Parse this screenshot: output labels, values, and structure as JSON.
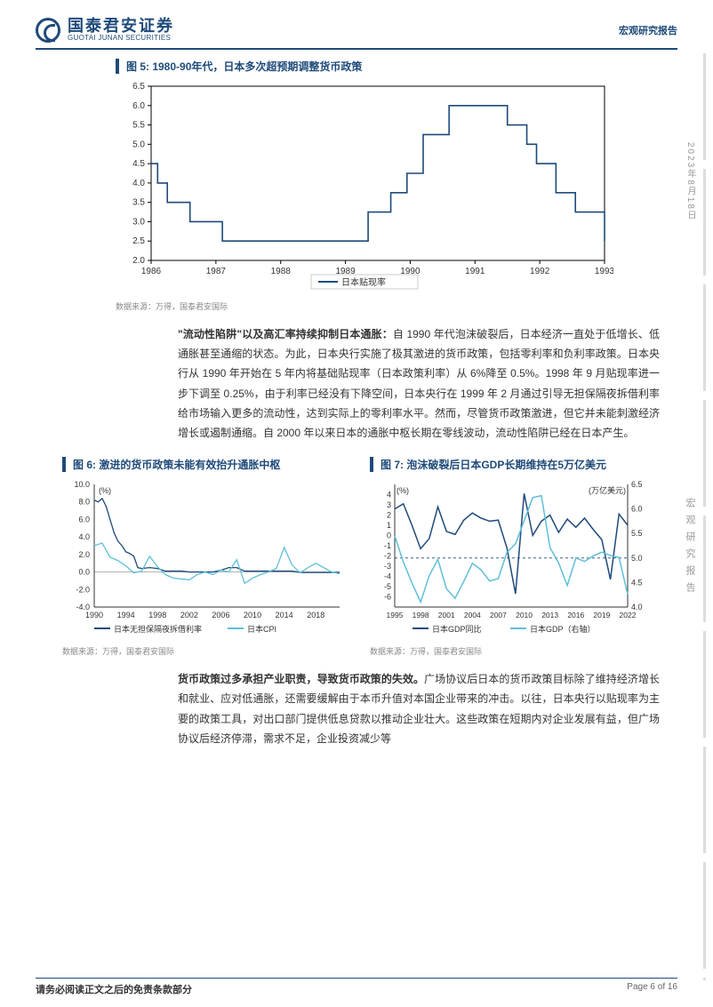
{
  "header": {
    "logo_cn": "国泰君安证券",
    "logo_en": "GUOTAI JUNAN SECURITIES",
    "right": "宏观研究报告"
  },
  "side": {
    "date": "2023年8月18日",
    "label": "宏观研究报告"
  },
  "fig5": {
    "title": "图 5:  1980-90年代，日本多次超预期调整货币政策",
    "type": "step-line",
    "legend": "日本贴现率",
    "xlim": [
      1986,
      1993
    ],
    "ylim": [
      2.0,
      6.5
    ],
    "ytick_step": 0.5,
    "xticks": [
      1986,
      1987,
      1988,
      1989,
      1990,
      1991,
      1992,
      1993
    ],
    "line_color": "#1e4a7a",
    "border_color": "#000000",
    "background_color": "#ffffff",
    "line_width": 1.6,
    "data": [
      [
        1986.0,
        4.5
      ],
      [
        1986.1,
        4.5
      ],
      [
        1986.1,
        4.0
      ],
      [
        1986.25,
        4.0
      ],
      [
        1986.25,
        3.5
      ],
      [
        1986.6,
        3.5
      ],
      [
        1986.6,
        3.0
      ],
      [
        1987.1,
        3.0
      ],
      [
        1987.1,
        2.5
      ],
      [
        1989.35,
        2.5
      ],
      [
        1989.35,
        3.25
      ],
      [
        1989.7,
        3.25
      ],
      [
        1989.7,
        3.75
      ],
      [
        1989.95,
        3.75
      ],
      [
        1989.95,
        4.25
      ],
      [
        1990.2,
        4.25
      ],
      [
        1990.2,
        5.25
      ],
      [
        1990.6,
        5.25
      ],
      [
        1990.6,
        6.0
      ],
      [
        1991.5,
        6.0
      ],
      [
        1991.5,
        5.5
      ],
      [
        1991.8,
        5.5
      ],
      [
        1991.8,
        5.0
      ],
      [
        1991.95,
        5.0
      ],
      [
        1991.95,
        4.5
      ],
      [
        1992.25,
        4.5
      ],
      [
        1992.25,
        3.75
      ],
      [
        1992.55,
        3.75
      ],
      [
        1992.55,
        3.25
      ],
      [
        1993.0,
        3.25
      ],
      [
        1993.0,
        2.5
      ]
    ],
    "source": "数据来源：万得，国泰君安国际"
  },
  "para1": {
    "bold": "\"流动性陷阱\"以及高汇率持续抑制日本通胀：",
    "text": "自 1990 年代泡沫破裂后，日本经济一直处于低增长、低通胀甚至通缩的状态。为此，日本央行实施了极其激进的货币政策，包括零利率和负利率政策。日本央行从 1990 年开始在 5 年内将基础贴现率（日本政策利率）从 6%降至 0.5%。1998 年 9 月贴现率进一步下调至 0.25%，由于利率已经没有下降空间，日本央行在 1999 年 2 月通过引导无担保隔夜拆借利率给市场输入更多的流动性，达到实际上的零利率水平。然而，尽管货币政策激进，但它并未能刺激经济增长或遏制通缩。自 2000 年以来日本的通胀中枢长期在零线波动，流动性陷阱已经在日本产生。"
  },
  "fig6": {
    "title": "图 6:  激进的货币政策未能有效抬升通胀中枢",
    "type": "line",
    "legend1": "日本无担保隔夜拆借利率",
    "legend2": "日本CPI",
    "xlim": [
      1990,
      2021
    ],
    "ylim": [
      -4.0,
      10.0
    ],
    "ytick_step": 2.0,
    "xticks": [
      1990,
      1994,
      1998,
      2002,
      2006,
      2010,
      2014,
      2018
    ],
    "color1": "#1e4a7a",
    "color2": "#5fbfd8",
    "unit": "(%)",
    "line_width": 1.3,
    "zeroline_color": "#aaaaaa",
    "series1": [
      [
        1990,
        8.2
      ],
      [
        1990.5,
        8.0
      ],
      [
        1991,
        8.4
      ],
      [
        1991.5,
        7.5
      ],
      [
        1992,
        6.0
      ],
      [
        1992.5,
        4.5
      ],
      [
        1993,
        3.5
      ],
      [
        1993.5,
        3.0
      ],
      [
        1994,
        2.3
      ],
      [
        1994.5,
        2.1
      ],
      [
        1995,
        1.8
      ],
      [
        1995.5,
        0.5
      ],
      [
        1996,
        0.4
      ],
      [
        1997,
        0.5
      ],
      [
        1998,
        0.4
      ],
      [
        1999,
        0.1
      ],
      [
        2000,
        0.1
      ],
      [
        2001,
        0.1
      ],
      [
        2002,
        0.0
      ],
      [
        2003,
        0.0
      ],
      [
        2004,
        0.0
      ],
      [
        2005,
        0.0
      ],
      [
        2006,
        0.2
      ],
      [
        2007,
        0.5
      ],
      [
        2008,
        0.5
      ],
      [
        2009,
        0.1
      ],
      [
        2010,
        0.1
      ],
      [
        2011,
        0.1
      ],
      [
        2012,
        0.1
      ],
      [
        2013,
        0.1
      ],
      [
        2014,
        0.1
      ],
      [
        2015,
        0.1
      ],
      [
        2016,
        -0.05
      ],
      [
        2017,
        -0.05
      ],
      [
        2018,
        -0.05
      ],
      [
        2019,
        -0.05
      ],
      [
        2020,
        -0.05
      ],
      [
        2021,
        -0.05
      ]
    ],
    "series2": [
      [
        1990,
        3.0
      ],
      [
        1991,
        3.3
      ],
      [
        1992,
        1.7
      ],
      [
        1993,
        1.3
      ],
      [
        1994,
        0.7
      ],
      [
        1995,
        -0.1
      ],
      [
        1996,
        0.1
      ],
      [
        1997,
        1.8
      ],
      [
        1998,
        0.6
      ],
      [
        1999,
        -0.3
      ],
      [
        2000,
        -0.7
      ],
      [
        2001,
        -0.8
      ],
      [
        2002,
        -0.9
      ],
      [
        2003,
        -0.3
      ],
      [
        2004,
        0.0
      ],
      [
        2005,
        -0.3
      ],
      [
        2006,
        0.2
      ],
      [
        2007,
        0.0
      ],
      [
        2008,
        1.4
      ],
      [
        2009,
        -1.3
      ],
      [
        2010,
        -0.7
      ],
      [
        2011,
        -0.3
      ],
      [
        2012,
        0.0
      ],
      [
        2013,
        0.4
      ],
      [
        2014,
        2.8
      ],
      [
        2015,
        0.8
      ],
      [
        2016,
        -0.1
      ],
      [
        2017,
        0.5
      ],
      [
        2018,
        1.0
      ],
      [
        2019,
        0.5
      ],
      [
        2020,
        0.0
      ],
      [
        2021,
        -0.2
      ]
    ],
    "source": "数据来源：万得，国泰君安国际"
  },
  "fig7": {
    "title": "图 7:  泡沫破裂后日本GDP长期维持在5万亿美元",
    "type": "dual-axis-line",
    "legend1": "日本GDP同比",
    "legend2": "日本GDP（右轴）",
    "xlim": [
      1995,
      2022
    ],
    "ylim_left": [
      -7,
      5
    ],
    "ylim_right": [
      4.0,
      6.5
    ],
    "ytick_left": [
      -6,
      -5,
      -4,
      -3,
      -2,
      -1,
      0,
      1,
      2,
      3,
      4
    ],
    "ytick_right": [
      4.0,
      4.5,
      5.0,
      5.5,
      6.0,
      6.5
    ],
    "xticks": [
      1995,
      1998,
      2001,
      2004,
      2007,
      2010,
      2013,
      2016,
      2019,
      2022
    ],
    "color1": "#1e4a7a",
    "color2": "#5fbfd8",
    "unit_left": "(%)",
    "unit_right": "(万亿美元)",
    "dashed_ref": 5.0,
    "dashed_color": "#1e4a7a",
    "line_width": 1.5,
    "series1": [
      [
        1995,
        2.6
      ],
      [
        1996,
        3.1
      ],
      [
        1997,
        1.0
      ],
      [
        1998,
        -1.3
      ],
      [
        1999,
        -0.3
      ],
      [
        2000,
        2.8
      ],
      [
        2001,
        0.4
      ],
      [
        2002,
        0.1
      ],
      [
        2003,
        1.5
      ],
      [
        2004,
        2.2
      ],
      [
        2005,
        1.7
      ],
      [
        2006,
        1.4
      ],
      [
        2007,
        1.5
      ],
      [
        2008,
        -1.2
      ],
      [
        2009,
        -5.7
      ],
      [
        2010,
        4.1
      ],
      [
        2011,
        0.0
      ],
      [
        2012,
        1.4
      ],
      [
        2013,
        2.0
      ],
      [
        2014,
        0.3
      ],
      [
        2015,
        1.6
      ],
      [
        2016,
        0.8
      ],
      [
        2017,
        1.7
      ],
      [
        2018,
        0.6
      ],
      [
        2019,
        -0.4
      ],
      [
        2020,
        -4.3
      ],
      [
        2021,
        2.1
      ],
      [
        2022,
        1.0
      ]
    ],
    "series2": [
      [
        1995,
        5.45
      ],
      [
        1996,
        4.92
      ],
      [
        1997,
        4.49
      ],
      [
        1998,
        4.1
      ],
      [
        1999,
        4.64
      ],
      [
        2000,
        4.97
      ],
      [
        2001,
        4.37
      ],
      [
        2002,
        4.18
      ],
      [
        2003,
        4.52
      ],
      [
        2004,
        4.89
      ],
      [
        2005,
        4.76
      ],
      [
        2006,
        4.53
      ],
      [
        2007,
        4.58
      ],
      [
        2008,
        5.11
      ],
      [
        2009,
        5.29
      ],
      [
        2010,
        5.76
      ],
      [
        2011,
        6.23
      ],
      [
        2012,
        6.27
      ],
      [
        2013,
        5.21
      ],
      [
        2014,
        4.9
      ],
      [
        2015,
        4.44
      ],
      [
        2016,
        5.0
      ],
      [
        2017,
        4.93
      ],
      [
        2018,
        5.04
      ],
      [
        2019,
        5.12
      ],
      [
        2020,
        5.05
      ],
      [
        2021,
        5.01
      ],
      [
        2022,
        4.26
      ]
    ],
    "source": "数据来源：万得，国泰君安国际"
  },
  "para2": {
    "bold": "货币政策过多承担产业职责，导致货币政策的失效。",
    "text": "广场协议后日本的货币政策目标除了维持经济增长和就业、应对低通胀，还需要缓解由于本币升值对本国企业带来的冲击。以往，日本央行以贴现率为主要的政策工具，对出口部门提供低息贷款以推动企业壮大。这些政策在短期内对企业发展有益，但广场协议后经济停滞，需求不足，企业投资减少等"
  },
  "footer": {
    "left": "请务必阅读正文之后的免责条款部分",
    "right": "Page 6 of 16"
  }
}
